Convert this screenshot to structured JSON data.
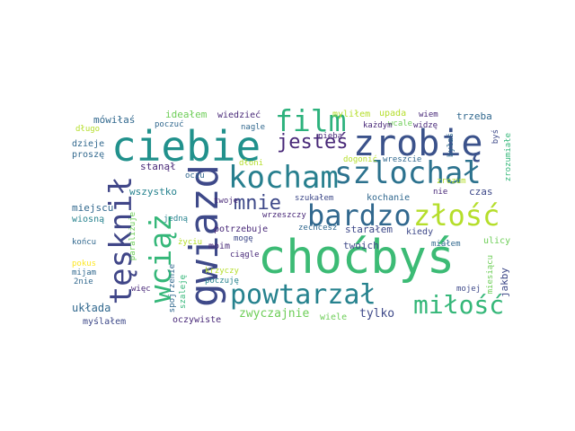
{
  "palette": [
    "#440154",
    "#482878",
    "#3e4989",
    "#31688e",
    "#26828e",
    "#1f9e89",
    "#35b779",
    "#6ece58",
    "#b5de2b",
    "#fde725"
  ],
  "words": [
    {
      "id": "chocbys",
      "text": "choćbyś",
      "color": "#3cbb75"
    },
    {
      "id": "ciebie",
      "text": "ciebie",
      "color": "#21918c"
    },
    {
      "id": "gwiazd",
      "text": "gwiazd",
      "color": "#3e4989"
    },
    {
      "id": "zrobie",
      "text": "zrobię",
      "color": "#3b528b"
    },
    {
      "id": "film",
      "text": "film",
      "color": "#2db27d"
    },
    {
      "id": "kocham",
      "text": "kocham",
      "color": "#277f8e"
    },
    {
      "id": "szlochal",
      "text": "szlochał",
      "color": "#2c728e"
    },
    {
      "id": "tesknil",
      "text": "tęsknił",
      "color": "#404688"
    },
    {
      "id": "wciaz",
      "text": "wciąż",
      "color": "#35b779"
    },
    {
      "id": "bardzo",
      "text": "bardzo",
      "color": "#31688e"
    },
    {
      "id": "zlosc",
      "text": "złość",
      "color": "#b5de2b"
    },
    {
      "id": "powtarzal",
      "text": "powtarzał",
      "color": "#26828e"
    },
    {
      "id": "milosc",
      "text": "miłość",
      "color": "#35b779"
    },
    {
      "id": "jestes",
      "text": "jesteś",
      "color": "#482878"
    },
    {
      "id": "mnie",
      "text": "mnie",
      "color": "#3e4989"
    },
    {
      "id": "zwyczajnie",
      "text": "zwyczajnie",
      "color": "#6ece58"
    },
    {
      "id": "tylko",
      "text": "tylko",
      "color": "#3e4989"
    },
    {
      "id": "wiele",
      "text": "wiele",
      "color": "#6ece58"
    },
    {
      "id": "oczywiste",
      "text": "oczywiste",
      "color": "#482878"
    },
    {
      "id": "myslalem",
      "text": "myślałem",
      "color": "#3e4989"
    },
    {
      "id": "uklada",
      "text": "układa",
      "color": "#31688e"
    },
    {
      "id": "mowilas",
      "text": "mówiłaś",
      "color": "#31688e"
    },
    {
      "id": "dlugo",
      "text": "długo",
      "color": "#b5de2b"
    },
    {
      "id": "dzieje",
      "text": "dzieje",
      "color": "#31688e"
    },
    {
      "id": "prosze",
      "text": "proszę",
      "color": "#31688e"
    },
    {
      "id": "idealem",
      "text": "ideałem",
      "color": "#6ece58"
    },
    {
      "id": "poczuc",
      "text": "poczuć",
      "color": "#31688e"
    },
    {
      "id": "wiedziec",
      "text": "wiedzieć",
      "color": "#482878"
    },
    {
      "id": "nagle",
      "text": "nagle",
      "color": "#31688e"
    },
    {
      "id": "mylilem",
      "text": "myliłem",
      "color": "#b5de2b"
    },
    {
      "id": "upada",
      "text": "upada",
      "color": "#b5de2b"
    },
    {
      "id": "wiem",
      "text": "wiem",
      "color": "#482878"
    },
    {
      "id": "widze",
      "text": "widzę",
      "color": "#482878"
    },
    {
      "id": "trzeba",
      "text": "trzeba",
      "color": "#31688e"
    },
    {
      "id": "bys",
      "text": "byś",
      "color": "#3e4989"
    },
    {
      "id": "zrozumiale",
      "text": "zrozumiałe",
      "color": "#35b779"
    },
    {
      "id": "wreszcie",
      "text": "wreszcie",
      "color": "#31688e"
    },
    {
      "id": "stanal",
      "text": "stanął",
      "color": "#482878"
    },
    {
      "id": "wszystko",
      "text": "wszystko",
      "color": "#26828e"
    },
    {
      "id": "oczu",
      "text": "oczu",
      "color": "#31688e"
    },
    {
      "id": "nieba",
      "text": "nieba",
      "color": "#482878"
    },
    {
      "id": "dloni",
      "text": "dłoni",
      "color": "#b5de2b"
    },
    {
      "id": "dogonic",
      "text": "dogonić",
      "color": "#b5de2b"
    },
    {
      "id": "miejscu",
      "text": "miejscu",
      "color": "#31688e"
    },
    {
      "id": "wiosna",
      "text": "wiosną",
      "color": "#26828e"
    },
    {
      "id": "twoje",
      "text": "twoje",
      "color": "#482878"
    },
    {
      "id": "jedna",
      "text": "jedną",
      "color": "#26828e"
    },
    {
      "id": "paralizuje",
      "text": "paraliżuje",
      "color": "#6ece58"
    },
    {
      "id": "szukalem",
      "text": "szukałem",
      "color": "#3e4989"
    },
    {
      "id": "kochanie",
      "text": "kochanie",
      "color": "#31688e"
    },
    {
      "id": "czas",
      "text": "czas",
      "color": "#3e4989"
    },
    {
      "id": "nie",
      "text": "nie",
      "color": "#482878"
    },
    {
      "id": "zrozum",
      "text": "zrozum",
      "color": "#b5de2b"
    },
    {
      "id": "wrzeszczy",
      "text": "wrzeszczy",
      "color": "#482878"
    },
    {
      "id": "potrzebuje",
      "text": "potrzebuje",
      "color": "#482878"
    },
    {
      "id": "zechcesz",
      "text": "zechcesz",
      "color": "#31688e"
    },
    {
      "id": "staralem",
      "text": "starałem",
      "color": "#3e4989"
    },
    {
      "id": "kiedy",
      "text": "kiedy",
      "color": "#3e4989"
    },
    {
      "id": "koncu",
      "text": "końcu",
      "color": "#31688e"
    },
    {
      "id": "zyciu",
      "text": "życiu",
      "color": "#b5de2b"
    },
    {
      "id": "moim",
      "text": "moim",
      "color": "#482878"
    },
    {
      "id": "moge",
      "text": "mogę",
      "color": "#3e4989"
    },
    {
      "id": "twoich",
      "text": "twoich",
      "color": "#3e4989"
    },
    {
      "id": "ulicy",
      "text": "ulicy",
      "color": "#6ece58"
    },
    {
      "id": "mialem",
      "text": "miałem",
      "color": "#31688e"
    },
    {
      "id": "pokus",
      "text": "pokus",
      "color": "#fde725"
    },
    {
      "id": "mijam",
      "text": "mijam",
      "color": "#31688e"
    },
    {
      "id": "2nie",
      "text": "2nie",
      "color": "#31688e"
    },
    {
      "id": "krzyczy",
      "text": "krzyczy",
      "color": "#b5de2b"
    },
    {
      "id": "poczuje",
      "text": "poczuję",
      "color": "#26828e"
    },
    {
      "id": "spojrzenie",
      "text": "spojrzenie",
      "color": "#31688e"
    },
    {
      "id": "szaleje",
      "text": "szaleję",
      "color": "#35b779"
    },
    {
      "id": "wiec",
      "text": "więc",
      "color": "#482878"
    },
    {
      "id": "ciagle",
      "text": "ciągle",
      "color": "#482878"
    },
    {
      "id": "miesiacu",
      "text": "miesiącu",
      "color": "#6ece58"
    },
    {
      "id": "mojej",
      "text": "mojej",
      "color": "#3e4989"
    },
    {
      "id": "jakby",
      "text": "jakby",
      "color": "#3e4989"
    },
    {
      "id": "wcale",
      "text": "wcale",
      "color": "#6ece58"
    },
    {
      "id": "kazdym",
      "text": "każdym",
      "color": "#482878"
    },
    {
      "id": "bylas",
      "text": "byłaś",
      "color": "#31688e"
    }
  ]
}
